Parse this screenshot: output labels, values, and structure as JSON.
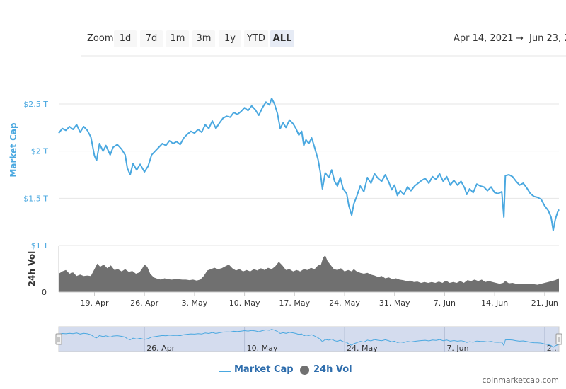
{
  "toolbar": {
    "zoom_label": "Zoom",
    "buttons": [
      "1d",
      "7d",
      "1m",
      "3m",
      "1y",
      "YTD",
      "ALL"
    ],
    "active_button": "ALL"
  },
  "range": {
    "from": "Apr 14, 2021",
    "arrow": "→",
    "to": "Jun 23, 2"
  },
  "legend": {
    "market_cap": "Market Cap",
    "volume": "24h Vol"
  },
  "footer": "coinmarketcap.com",
  "colors": {
    "market_cap": "#4aa8e0",
    "volume": "#707070",
    "navigator_fill": "#ccd6eb"
  },
  "chart_data": {
    "type": "line",
    "x_ticks": [
      "19. Apr",
      "26. Apr",
      "3. May",
      "10. May",
      "17. May",
      "24. May",
      "31. May",
      "7. Jun",
      "14. Jun",
      "21. Jun"
    ],
    "navigator_ticks": [
      "26. Apr",
      "10. May",
      "24. May",
      "7. Jun",
      "2..."
    ],
    "y_market_cap_ticks": [
      "$1 T",
      "$1.5 T",
      "$2 T",
      "$2.5 T"
    ],
    "y_volume_ticks": [
      "0"
    ],
    "ylabel_market_cap": "Market Cap",
    "ylabel_volume": "24h Vol",
    "x_day_start": 14,
    "x_day_end": 84,
    "market_cap_ylim": [
      1.0,
      2.6
    ],
    "series": [
      {
        "name": "Market Cap",
        "unit": "T USD",
        "points": [
          [
            14.0,
            2.19
          ],
          [
            14.5,
            2.24
          ],
          [
            15.0,
            2.22
          ],
          [
            15.5,
            2.26
          ],
          [
            16.0,
            2.23
          ],
          [
            16.5,
            2.28
          ],
          [
            17.0,
            2.2
          ],
          [
            17.5,
            2.26
          ],
          [
            18.0,
            2.22
          ],
          [
            18.5,
            2.15
          ],
          [
            19.0,
            1.95
          ],
          [
            19.3,
            1.9
          ],
          [
            19.7,
            2.08
          ],
          [
            20.2,
            2.0
          ],
          [
            20.6,
            2.06
          ],
          [
            21.2,
            1.96
          ],
          [
            21.6,
            2.04
          ],
          [
            22.2,
            2.07
          ],
          [
            22.8,
            2.02
          ],
          [
            23.3,
            1.96
          ],
          [
            23.6,
            1.82
          ],
          [
            24.0,
            1.75
          ],
          [
            24.4,
            1.87
          ],
          [
            24.9,
            1.8
          ],
          [
            25.4,
            1.86
          ],
          [
            26.0,
            1.78
          ],
          [
            26.5,
            1.84
          ],
          [
            27.0,
            1.96
          ],
          [
            27.5,
            2.0
          ],
          [
            28.0,
            2.04
          ],
          [
            28.5,
            2.08
          ],
          [
            29.0,
            2.06
          ],
          [
            29.5,
            2.11
          ],
          [
            30.0,
            2.08
          ],
          [
            30.5,
            2.1
          ],
          [
            31.0,
            2.07
          ],
          [
            31.5,
            2.14
          ],
          [
            32.0,
            2.18
          ],
          [
            32.5,
            2.21
          ],
          [
            33.0,
            2.19
          ],
          [
            33.5,
            2.23
          ],
          [
            34.0,
            2.2
          ],
          [
            34.5,
            2.28
          ],
          [
            35.0,
            2.24
          ],
          [
            35.5,
            2.32
          ],
          [
            36.0,
            2.24
          ],
          [
            36.5,
            2.3
          ],
          [
            37.0,
            2.35
          ],
          [
            37.5,
            2.37
          ],
          [
            38.0,
            2.36
          ],
          [
            38.5,
            2.41
          ],
          [
            39.0,
            2.39
          ],
          [
            39.5,
            2.42
          ],
          [
            40.0,
            2.46
          ],
          [
            40.5,
            2.43
          ],
          [
            41.0,
            2.48
          ],
          [
            41.5,
            2.44
          ],
          [
            42.0,
            2.38
          ],
          [
            42.5,
            2.46
          ],
          [
            43.0,
            2.52
          ],
          [
            43.5,
            2.49
          ],
          [
            43.8,
            2.56
          ],
          [
            44.2,
            2.5
          ],
          [
            44.6,
            2.4
          ],
          [
            45.0,
            2.24
          ],
          [
            45.4,
            2.3
          ],
          [
            45.8,
            2.25
          ],
          [
            46.3,
            2.33
          ],
          [
            46.8,
            2.29
          ],
          [
            47.2,
            2.24
          ],
          [
            47.6,
            2.17
          ],
          [
            48.0,
            2.21
          ],
          [
            48.3,
            2.06
          ],
          [
            48.6,
            2.12
          ],
          [
            49.0,
            2.08
          ],
          [
            49.4,
            2.14
          ],
          [
            49.8,
            2.04
          ],
          [
            50.3,
            1.91
          ],
          [
            50.6,
            1.78
          ],
          [
            50.9,
            1.6
          ],
          [
            51.3,
            1.77
          ],
          [
            51.8,
            1.72
          ],
          [
            52.2,
            1.8
          ],
          [
            52.6,
            1.68
          ],
          [
            53.0,
            1.63
          ],
          [
            53.4,
            1.72
          ],
          [
            53.8,
            1.6
          ],
          [
            54.3,
            1.55
          ],
          [
            54.6,
            1.42
          ],
          [
            55.0,
            1.32
          ],
          [
            55.3,
            1.44
          ],
          [
            55.7,
            1.52
          ],
          [
            56.2,
            1.63
          ],
          [
            56.7,
            1.57
          ],
          [
            57.2,
            1.72
          ],
          [
            57.7,
            1.66
          ],
          [
            58.2,
            1.76
          ],
          [
            58.7,
            1.71
          ],
          [
            59.2,
            1.68
          ],
          [
            59.7,
            1.75
          ],
          [
            60.2,
            1.67
          ],
          [
            60.6,
            1.59
          ],
          [
            61.0,
            1.64
          ],
          [
            61.4,
            1.53
          ],
          [
            61.8,
            1.58
          ],
          [
            62.3,
            1.54
          ],
          [
            62.8,
            1.62
          ],
          [
            63.3,
            1.58
          ],
          [
            63.8,
            1.63
          ],
          [
            64.3,
            1.66
          ],
          [
            64.8,
            1.69
          ],
          [
            65.3,
            1.71
          ],
          [
            65.8,
            1.66
          ],
          [
            66.3,
            1.73
          ],
          [
            66.8,
            1.7
          ],
          [
            67.3,
            1.76
          ],
          [
            67.8,
            1.68
          ],
          [
            68.3,
            1.73
          ],
          [
            68.8,
            1.64
          ],
          [
            69.3,
            1.69
          ],
          [
            69.8,
            1.64
          ],
          [
            70.3,
            1.68
          ],
          [
            70.8,
            1.61
          ],
          [
            71.1,
            1.54
          ],
          [
            71.5,
            1.6
          ],
          [
            72.0,
            1.56
          ],
          [
            72.5,
            1.65
          ],
          [
            73.0,
            1.63
          ],
          [
            73.5,
            1.62
          ],
          [
            74.0,
            1.58
          ],
          [
            74.5,
            1.62
          ],
          [
            75.0,
            1.56
          ],
          [
            75.5,
            1.55
          ],
          [
            76.0,
            1.57
          ],
          [
            76.3,
            1.3
          ],
          [
            76.5,
            1.74
          ],
          [
            77.0,
            1.75
          ],
          [
            77.5,
            1.73
          ],
          [
            78.0,
            1.68
          ],
          [
            78.5,
            1.64
          ],
          [
            79.0,
            1.66
          ],
          [
            79.5,
            1.61
          ],
          [
            80.0,
            1.55
          ],
          [
            80.5,
            1.52
          ],
          [
            81.0,
            1.51
          ],
          [
            81.5,
            1.49
          ],
          [
            82.0,
            1.42
          ],
          [
            82.5,
            1.37
          ],
          [
            82.9,
            1.3
          ],
          [
            83.2,
            1.16
          ],
          [
            83.5,
            1.28
          ],
          [
            83.8,
            1.35
          ],
          [
            84.0,
            1.38
          ]
        ]
      },
      {
        "name": "24h Vol",
        "unit": "relative",
        "vol_ylim": [
          0,
          1
        ],
        "points": [
          [
            14.0,
            0.4
          ],
          [
            14.5,
            0.45
          ],
          [
            15.0,
            0.48
          ],
          [
            15.5,
            0.4
          ],
          [
            16.0,
            0.43
          ],
          [
            16.5,
            0.35
          ],
          [
            17.0,
            0.38
          ],
          [
            17.5,
            0.35
          ],
          [
            18.0,
            0.36
          ],
          [
            18.5,
            0.35
          ],
          [
            19.0,
            0.5
          ],
          [
            19.4,
            0.62
          ],
          [
            19.8,
            0.55
          ],
          [
            20.3,
            0.6
          ],
          [
            20.8,
            0.52
          ],
          [
            21.3,
            0.58
          ],
          [
            21.8,
            0.48
          ],
          [
            22.3,
            0.5
          ],
          [
            22.8,
            0.45
          ],
          [
            23.3,
            0.5
          ],
          [
            23.8,
            0.44
          ],
          [
            24.3,
            0.46
          ],
          [
            24.8,
            0.4
          ],
          [
            25.3,
            0.43
          ],
          [
            25.7,
            0.52
          ],
          [
            26.0,
            0.6
          ],
          [
            26.4,
            0.55
          ],
          [
            26.8,
            0.4
          ],
          [
            27.3,
            0.32
          ],
          [
            27.8,
            0.29
          ],
          [
            28.3,
            0.27
          ],
          [
            28.8,
            0.3
          ],
          [
            29.3,
            0.28
          ],
          [
            29.8,
            0.27
          ],
          [
            30.3,
            0.28
          ],
          [
            30.8,
            0.28
          ],
          [
            31.3,
            0.27
          ],
          [
            31.8,
            0.27
          ],
          [
            32.3,
            0.26
          ],
          [
            32.8,
            0.27
          ],
          [
            33.3,
            0.25
          ],
          [
            33.8,
            0.27
          ],
          [
            34.3,
            0.35
          ],
          [
            34.8,
            0.47
          ],
          [
            35.3,
            0.5
          ],
          [
            35.8,
            0.53
          ],
          [
            36.3,
            0.5
          ],
          [
            36.8,
            0.52
          ],
          [
            37.3,
            0.56
          ],
          [
            37.8,
            0.6
          ],
          [
            38.3,
            0.52
          ],
          [
            38.8,
            0.47
          ],
          [
            39.3,
            0.5
          ],
          [
            39.8,
            0.45
          ],
          [
            40.3,
            0.48
          ],
          [
            40.8,
            0.45
          ],
          [
            41.3,
            0.5
          ],
          [
            41.8,
            0.47
          ],
          [
            42.3,
            0.52
          ],
          [
            42.8,
            0.48
          ],
          [
            43.3,
            0.53
          ],
          [
            43.8,
            0.5
          ],
          [
            44.3,
            0.56
          ],
          [
            44.8,
            0.66
          ],
          [
            45.3,
            0.58
          ],
          [
            45.8,
            0.48
          ],
          [
            46.3,
            0.5
          ],
          [
            46.8,
            0.45
          ],
          [
            47.3,
            0.48
          ],
          [
            47.8,
            0.45
          ],
          [
            48.3,
            0.5
          ],
          [
            48.8,
            0.48
          ],
          [
            49.3,
            0.53
          ],
          [
            49.8,
            0.5
          ],
          [
            50.3,
            0.58
          ],
          [
            50.7,
            0.6
          ],
          [
            51.0,
            0.75
          ],
          [
            51.3,
            0.8
          ],
          [
            51.6,
            0.68
          ],
          [
            52.0,
            0.6
          ],
          [
            52.5,
            0.5
          ],
          [
            53.0,
            0.48
          ],
          [
            53.5,
            0.52
          ],
          [
            54.0,
            0.45
          ],
          [
            54.5,
            0.48
          ],
          [
            55.0,
            0.45
          ],
          [
            55.3,
            0.5
          ],
          [
            55.7,
            0.45
          ],
          [
            56.2,
            0.42
          ],
          [
            56.7,
            0.4
          ],
          [
            57.2,
            0.42
          ],
          [
            57.7,
            0.38
          ],
          [
            58.2,
            0.36
          ],
          [
            58.7,
            0.33
          ],
          [
            59.2,
            0.35
          ],
          [
            59.7,
            0.3
          ],
          [
            60.2,
            0.32
          ],
          [
            60.7,
            0.28
          ],
          [
            61.2,
            0.3
          ],
          [
            61.7,
            0.27
          ],
          [
            62.2,
            0.26
          ],
          [
            62.7,
            0.24
          ],
          [
            63.2,
            0.25
          ],
          [
            63.7,
            0.22
          ],
          [
            64.2,
            0.23
          ],
          [
            64.7,
            0.2
          ],
          [
            65.2,
            0.22
          ],
          [
            65.7,
            0.2
          ],
          [
            66.2,
            0.22
          ],
          [
            66.7,
            0.2
          ],
          [
            67.2,
            0.23
          ],
          [
            67.7,
            0.2
          ],
          [
            68.2,
            0.25
          ],
          [
            68.7,
            0.2
          ],
          [
            69.2,
            0.22
          ],
          [
            69.7,
            0.2
          ],
          [
            70.2,
            0.24
          ],
          [
            70.7,
            0.2
          ],
          [
            71.2,
            0.26
          ],
          [
            71.7,
            0.24
          ],
          [
            72.2,
            0.27
          ],
          [
            72.7,
            0.24
          ],
          [
            73.2,
            0.27
          ],
          [
            73.7,
            0.22
          ],
          [
            74.2,
            0.24
          ],
          [
            74.7,
            0.22
          ],
          [
            75.2,
            0.2
          ],
          [
            75.7,
            0.18
          ],
          [
            76.2,
            0.2
          ],
          [
            76.5,
            0.24
          ],
          [
            77.0,
            0.19
          ],
          [
            77.5,
            0.2
          ],
          [
            78.0,
            0.18
          ],
          [
            78.5,
            0.17
          ],
          [
            79.0,
            0.18
          ],
          [
            79.5,
            0.17
          ],
          [
            80.0,
            0.18
          ],
          [
            80.5,
            0.17
          ],
          [
            81.0,
            0.16
          ],
          [
            81.5,
            0.18
          ],
          [
            82.0,
            0.2
          ],
          [
            82.5,
            0.22
          ],
          [
            83.0,
            0.24
          ],
          [
            83.5,
            0.26
          ],
          [
            84.0,
            0.3
          ]
        ]
      }
    ]
  }
}
